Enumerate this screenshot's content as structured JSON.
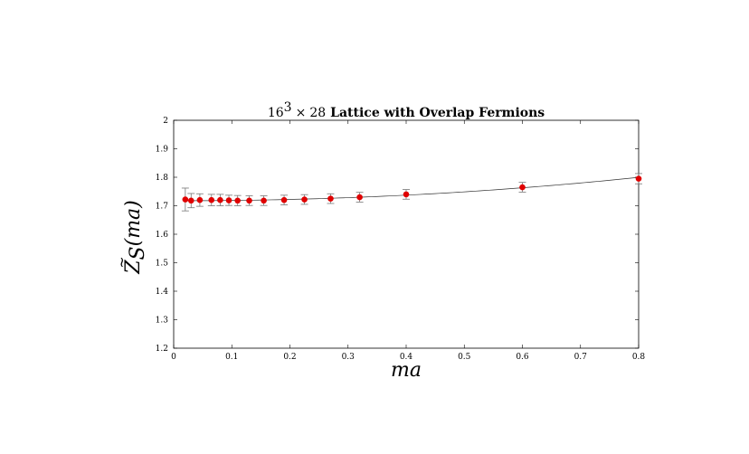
{
  "chart_data": {
    "type": "scatter",
    "title": {
      "lattice": "16",
      "exponent": "3",
      "times": "×",
      "extent": "28",
      "rest": "Lattice with Overlap Fermions"
    },
    "xlabel": "ma",
    "ylabel": {
      "base": "Z",
      "tilde": "~",
      "sub": "S",
      "arg": "(ma)"
    },
    "xlim": [
      0,
      0.8
    ],
    "ylim": [
      1.2,
      2.0
    ],
    "xticks": [
      "0",
      "0.1",
      "0.2",
      "0.3",
      "0.4",
      "0.5",
      "0.6",
      "0.7",
      "0.8"
    ],
    "yticks": [
      "1.2",
      "1.3",
      "1.4",
      "1.5",
      "1.6",
      "1.7",
      "1.8",
      "1.9",
      "2"
    ],
    "grid": false,
    "points": [
      {
        "x": 0.02,
        "y": 1.722,
        "err": 0.04
      },
      {
        "x": 0.03,
        "y": 1.718,
        "err": 0.025
      },
      {
        "x": 0.045,
        "y": 1.72,
        "err": 0.022
      },
      {
        "x": 0.065,
        "y": 1.72,
        "err": 0.02
      },
      {
        "x": 0.08,
        "y": 1.72,
        "err": 0.02
      },
      {
        "x": 0.095,
        "y": 1.719,
        "err": 0.018
      },
      {
        "x": 0.11,
        "y": 1.718,
        "err": 0.018
      },
      {
        "x": 0.13,
        "y": 1.718,
        "err": 0.017
      },
      {
        "x": 0.155,
        "y": 1.718,
        "err": 0.017
      },
      {
        "x": 0.19,
        "y": 1.72,
        "err": 0.017
      },
      {
        "x": 0.225,
        "y": 1.722,
        "err": 0.017
      },
      {
        "x": 0.27,
        "y": 1.725,
        "err": 0.017
      },
      {
        "x": 0.32,
        "y": 1.73,
        "err": 0.017
      },
      {
        "x": 0.4,
        "y": 1.74,
        "err": 0.017
      },
      {
        "x": 0.6,
        "y": 1.765,
        "err": 0.017
      },
      {
        "x": 0.8,
        "y": 1.795,
        "err": 0.018
      }
    ],
    "fit": {
      "type": "quadratic",
      "coefficients": [
        1.7178,
        -0.005,
        0.134
      ]
    },
    "colors": {
      "marker": "#e00000",
      "errorbar": "#777777",
      "fit": "#333333",
      "axes": "#000000"
    }
  }
}
